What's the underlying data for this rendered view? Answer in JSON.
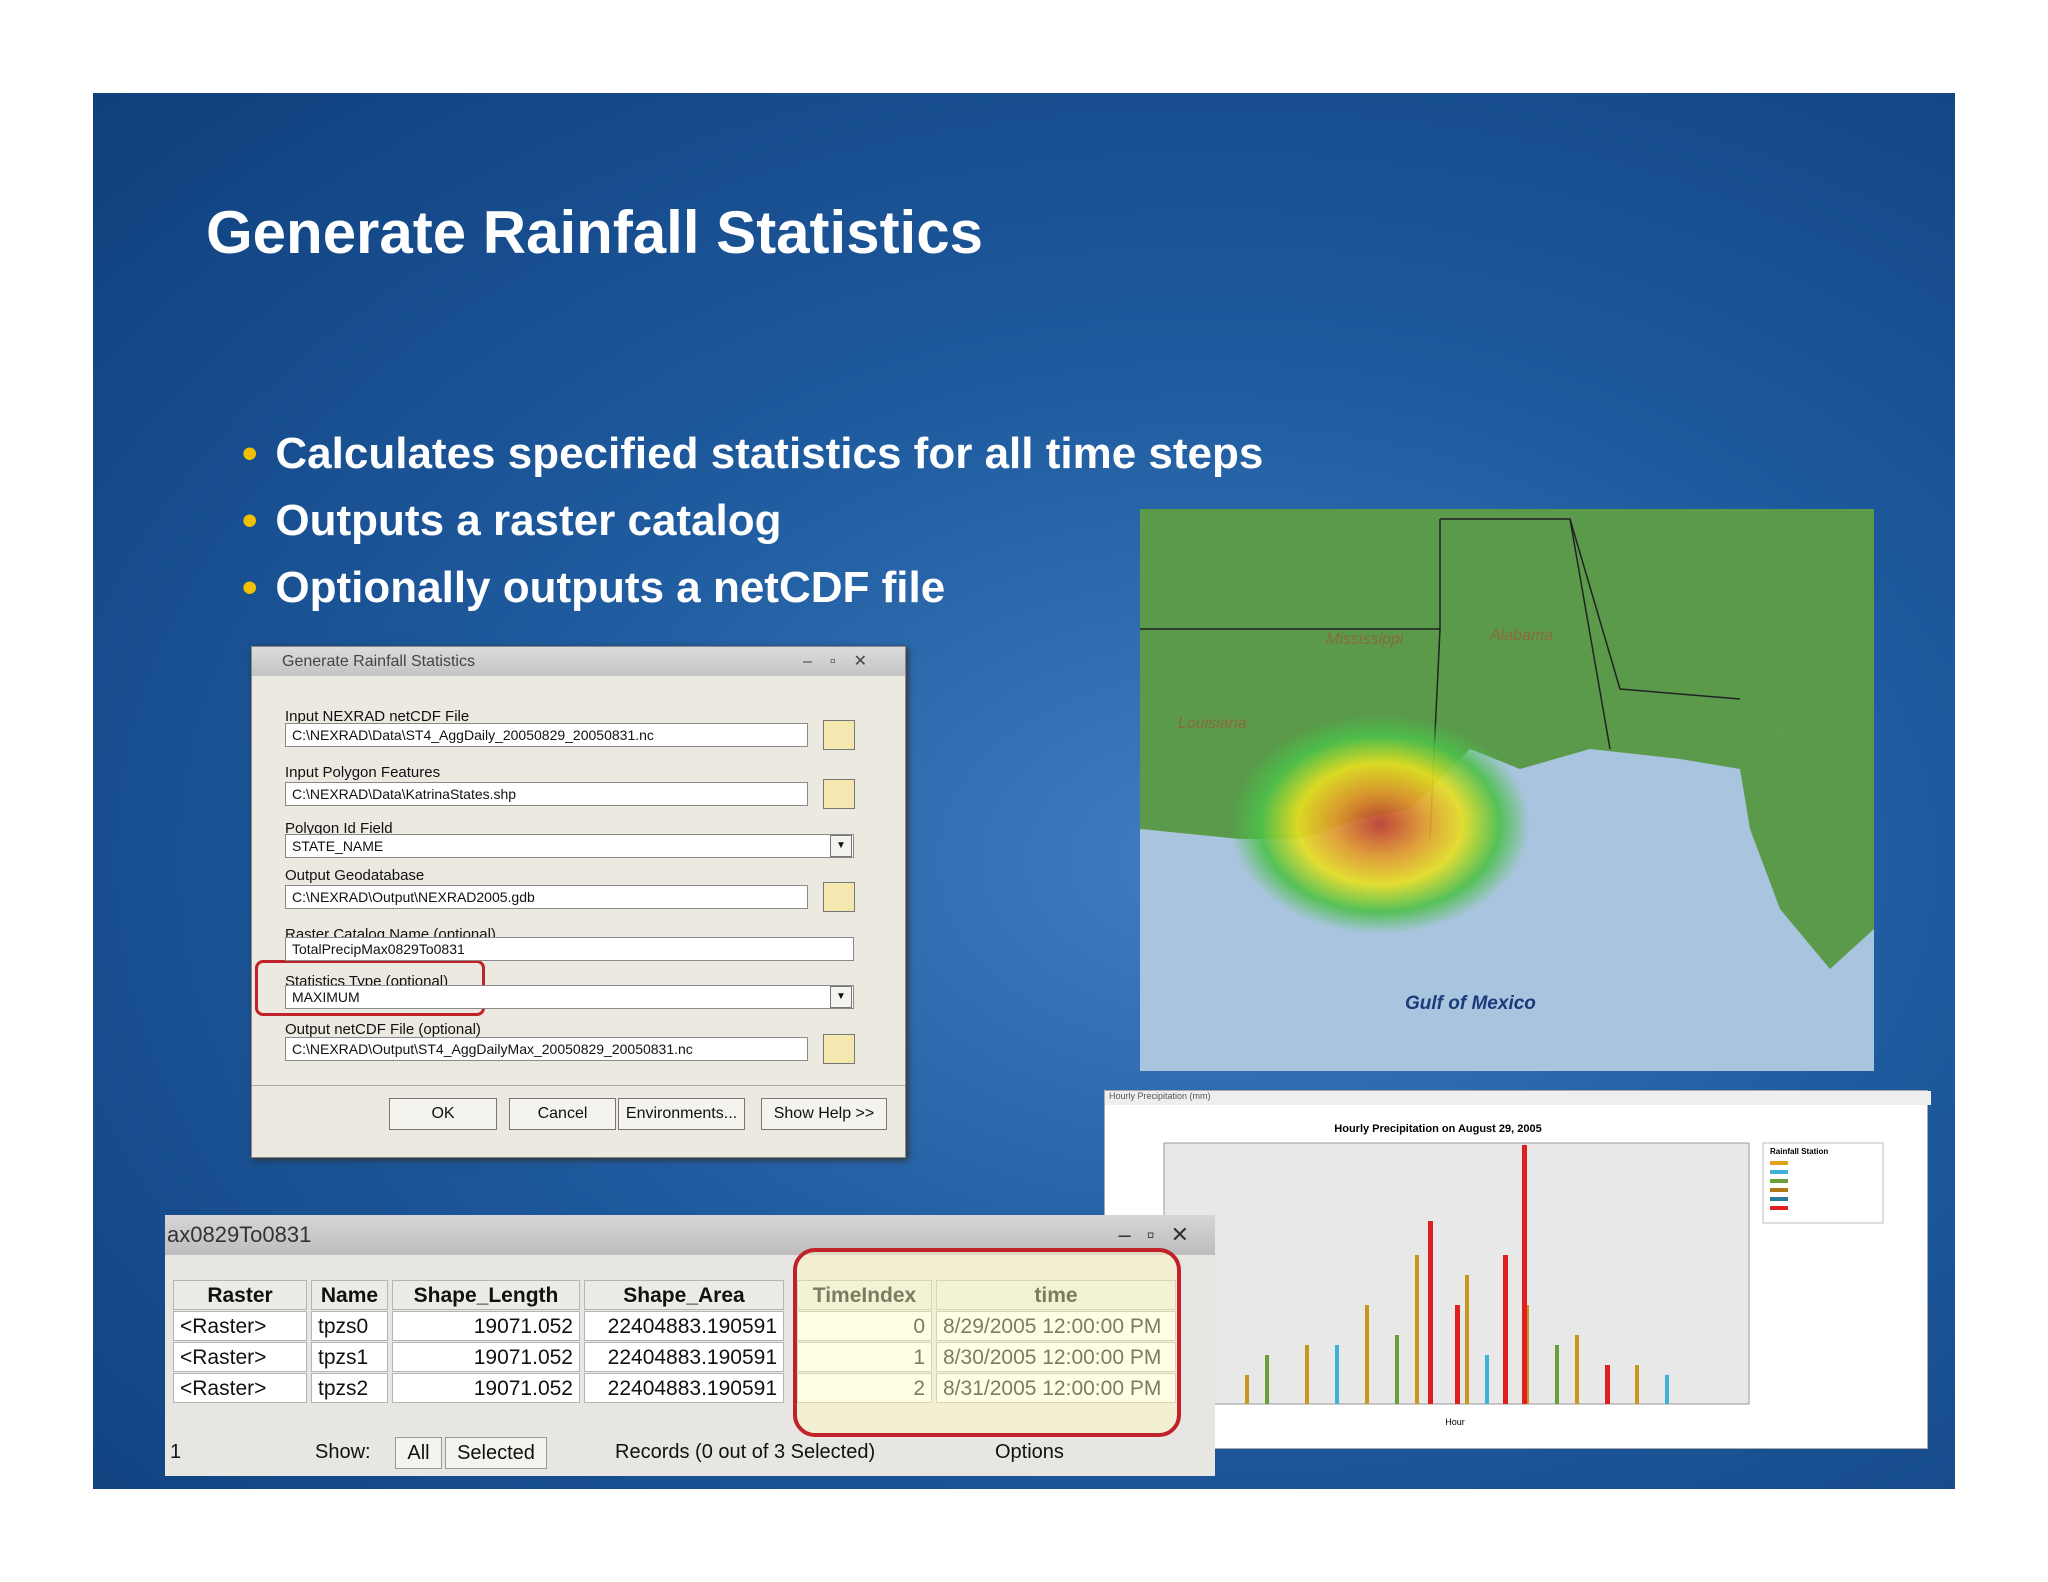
{
  "slide": {
    "title": "Generate Rainfall Statistics",
    "bullets": [
      "Calculates specified statistics for all time steps",
      "Outputs a raster catalog",
      "Optionally outputs a netCDF file"
    ]
  },
  "dialog": {
    "title": "Generate Rainfall Statistics",
    "fields": [
      {
        "label": "Input NEXRAD netCDF File",
        "value": "C:\\NEXRAD\\Data\\ST4_AggDaily_20050829_20050831.nc"
      },
      {
        "label": "Input Polygon Features",
        "value": "C:\\NEXRAD\\Data\\KatrinaStates.shp"
      },
      {
        "label": "Polygon Id Field",
        "value": "STATE_NAME"
      },
      {
        "label": "Output Geodatabase",
        "value": "C:\\NEXRAD\\Output\\NEXRAD2005.gdb"
      },
      {
        "label": "Raster Catalog Name (optional)",
        "value": "TotalPrecipMax0829To0831"
      },
      {
        "label": "Statistics Type (optional)",
        "value": "MAXIMUM"
      },
      {
        "label": "Output netCDF File (optional)",
        "value": "C:\\NEXRAD\\Output\\ST4_AggDailyMax_20050829_20050831.nc"
      }
    ],
    "buttons": [
      "OK",
      "Cancel",
      "Environments...",
      "Show Help >>"
    ]
  },
  "map": {
    "labels": [
      "Mississippi",
      "Alabama",
      "Louisiana",
      "Gulf of Mexico"
    ]
  },
  "chart_window": {
    "title": "Hourly Precipitation (mm)",
    "chart_title": "Hourly Precipitation on August 29, 2005",
    "legend_title": "Rainfall Station",
    "x_label": "Hour"
  },
  "table": {
    "title": "ax0829To0831",
    "headers": [
      "Raster",
      "Name",
      "Shape_Length",
      "Shape_Area",
      "TimeIndex",
      "time"
    ],
    "rows": [
      [
        "<Raster>",
        "tpzs0",
        "19071.052",
        "22404883.190591",
        "0",
        "8/29/2005 12:00:00 PM"
      ],
      [
        "<Raster>",
        "tpzs1",
        "19071.052",
        "22404883.190591",
        "1",
        "8/30/2005 12:00:00 PM"
      ],
      [
        "<Raster>",
        "tpzs2",
        "19071.052",
        "22404883.190591",
        "2",
        "8/31/2005 12:00:00 PM"
      ]
    ],
    "footer": [
      "1",
      "Show:",
      "All",
      "Selected",
      "Records (0 out of 3 Selected)",
      "Options"
    ]
  }
}
